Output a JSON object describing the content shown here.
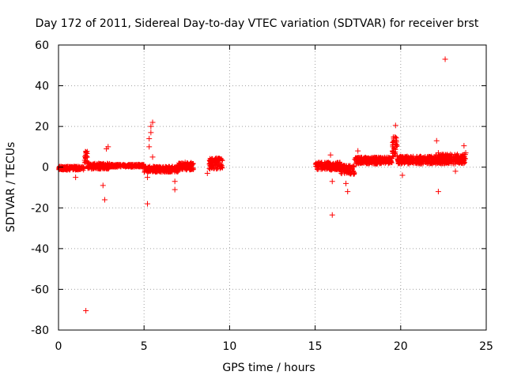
{
  "chart_data": {
    "type": "scatter",
    "title": "Day 172 of 2011, Sidereal Day-to-day VTEC variation (SDTVAR) for receiver brst",
    "xlabel": "GPS time / hours",
    "ylabel": "SDTVAR / TECUs",
    "xlim": [
      0,
      25
    ],
    "ylim": [
      -80,
      60
    ],
    "xticks": [
      "0",
      "5",
      "10",
      "15",
      "20",
      "25"
    ],
    "yticks": [
      "-80",
      "-60",
      "-40",
      "-20",
      "0",
      "20",
      "40",
      "60"
    ],
    "grid": true,
    "marker": "+",
    "color": "#ff0000",
    "series": [
      {
        "name": "SDTVAR",
        "dense_bands": [
          {
            "x": [
              0.0,
              1.5
            ],
            "y": [
              -1.5,
              0.5
            ]
          },
          {
            "x": [
              1.5,
              1.7
            ],
            "y": [
              2.0,
              8.0
            ]
          },
          {
            "x": [
              1.7,
              3.0
            ],
            "y": [
              -1.0,
              2.0
            ]
          },
          {
            "x": [
              3.0,
              5.0
            ],
            "y": [
              0.0,
              1.5
            ]
          },
          {
            "x": [
              5.0,
              7.0
            ],
            "y": [
              -2.5,
              0.5
            ]
          },
          {
            "x": [
              7.0,
              7.9
            ],
            "y": [
              -1.5,
              2.5
            ]
          },
          {
            "x": [
              8.8,
              9.6
            ],
            "y": [
              -1.0,
              4.5
            ]
          },
          {
            "x": [
              15.0,
              16.5
            ],
            "y": [
              -1.5,
              2.5
            ]
          },
          {
            "x": [
              16.5,
              17.3
            ],
            "y": [
              -3.5,
              1.0
            ]
          },
          {
            "x": [
              17.3,
              19.5
            ],
            "y": [
              1.5,
              5.0
            ]
          },
          {
            "x": [
              19.5,
              19.8
            ],
            "y": [
              5.0,
              15.0
            ]
          },
          {
            "x": [
              19.8,
              22.0
            ],
            "y": [
              1.5,
              5.5
            ]
          },
          {
            "x": [
              22.0,
              23.8
            ],
            "y": [
              1.5,
              6.5
            ]
          }
        ],
        "outliers": [
          {
            "x": 1.6,
            "y": -70.5
          },
          {
            "x": 2.6,
            "y": -9
          },
          {
            "x": 2.7,
            "y": -16
          },
          {
            "x": 2.8,
            "y": 9
          },
          {
            "x": 2.9,
            "y": 10
          },
          {
            "x": 1.0,
            "y": -5
          },
          {
            "x": 5.2,
            "y": -18
          },
          {
            "x": 5.2,
            "y": -5
          },
          {
            "x": 5.3,
            "y": 10
          },
          {
            "x": 5.3,
            "y": 14
          },
          {
            "x": 5.4,
            "y": 17
          },
          {
            "x": 5.4,
            "y": 20
          },
          {
            "x": 5.5,
            "y": 22
          },
          {
            "x": 5.5,
            "y": 5
          },
          {
            "x": 6.8,
            "y": -11
          },
          {
            "x": 6.8,
            "y": -7
          },
          {
            "x": 8.7,
            "y": -3
          },
          {
            "x": 15.9,
            "y": 6
          },
          {
            "x": 16.0,
            "y": -7
          },
          {
            "x": 16.0,
            "y": -23.5
          },
          {
            "x": 16.8,
            "y": -8
          },
          {
            "x": 16.9,
            "y": -12
          },
          {
            "x": 17.5,
            "y": 8
          },
          {
            "x": 19.7,
            "y": 20.5
          },
          {
            "x": 20.1,
            "y": -4
          },
          {
            "x": 22.1,
            "y": 13
          },
          {
            "x": 22.2,
            "y": 7
          },
          {
            "x": 22.2,
            "y": -12
          },
          {
            "x": 22.6,
            "y": 53
          },
          {
            "x": 23.2,
            "y": -2
          },
          {
            "x": 23.7,
            "y": 10.5
          },
          {
            "x": 23.8,
            "y": 7
          }
        ]
      }
    ]
  }
}
